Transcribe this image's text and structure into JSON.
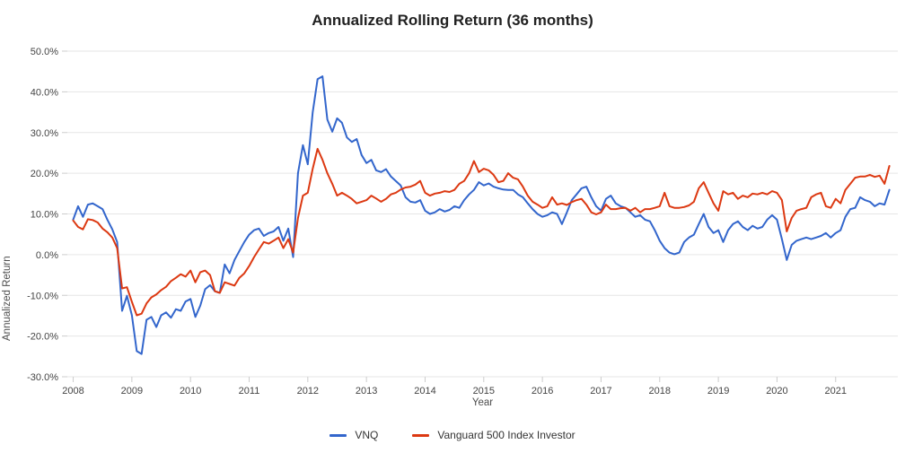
{
  "chart_data": {
    "type": "line",
    "title": "Annualized Rolling Return (36 months)",
    "xlabel": "Year",
    "ylabel": "Annualized Return",
    "x_unit": "monthly",
    "x_start_year": 2008,
    "x_end_year": 2021,
    "x_ticks": [
      2008,
      2009,
      2010,
      2011,
      2012,
      2013,
      2014,
      2015,
      2016,
      2017,
      2018,
      2019,
      2020,
      2021
    ],
    "ylim": [
      -30,
      50
    ],
    "y_tick_values": [
      50,
      40,
      30,
      20,
      10,
      0,
      -10,
      -20,
      -30
    ],
    "y_tick_labels": [
      "50.0%",
      "40.0%",
      "30.0%",
      "20.0%",
      "10.0%",
      "0.0%",
      "-10.0%",
      "-20.0%",
      "-30.0%"
    ],
    "grid": "horizontal",
    "legend_position": "bottom-center",
    "colors": {
      "gridline": "#e6e6e6",
      "tick": "#cccccc",
      "tick_label": "#444444"
    },
    "series": [
      {
        "name": "VNQ",
        "color": "#3366cc",
        "values": [
          8.6,
          11.9,
          9.3,
          12.3,
          12.6,
          11.9,
          11.2,
          8.6,
          6.2,
          3.1,
          -13.8,
          -10.1,
          -14.9,
          -23.7,
          -24.4,
          -16.0,
          -15.3,
          -17.8,
          -14.9,
          -14.2,
          -15.5,
          -13.4,
          -13.8,
          -11.5,
          -10.9,
          -15.3,
          -12.5,
          -8.5,
          -7.5,
          -9.0,
          -9.4,
          -2.4,
          -4.6,
          -1.3,
          0.9,
          3.1,
          4.9,
          6.0,
          6.4,
          4.6,
          5.3,
          5.7,
          6.8,
          3.4,
          6.4,
          -0.6,
          20.0,
          26.9,
          22.2,
          35.0,
          43.1,
          43.8,
          33.2,
          30.2,
          33.5,
          32.4,
          28.8,
          27.7,
          28.4,
          24.5,
          22.5,
          23.3,
          20.7,
          20.3,
          21.0,
          19.2,
          18.1,
          17.0,
          14.1,
          13.0,
          12.8,
          13.4,
          10.8,
          10.0,
          10.4,
          11.2,
          10.6,
          11.0,
          11.9,
          11.5,
          13.4,
          14.8,
          15.9,
          17.8,
          17.0,
          17.5,
          16.7,
          16.3,
          16.0,
          15.9,
          15.9,
          14.8,
          14.1,
          12.6,
          11.2,
          10.0,
          9.3,
          9.7,
          10.4,
          10.0,
          7.5,
          10.4,
          13.4,
          14.8,
          16.3,
          16.7,
          14.1,
          11.9,
          10.8,
          13.7,
          14.5,
          12.6,
          11.9,
          11.5,
          10.4,
          9.3,
          9.7,
          8.6,
          8.2,
          6.0,
          3.4,
          1.6,
          0.5,
          0.1,
          0.5,
          3.1,
          4.2,
          4.9,
          7.5,
          10.0,
          6.8,
          5.3,
          6.0,
          3.1,
          6.0,
          7.5,
          8.2,
          6.8,
          6.0,
          7.1,
          6.4,
          6.8,
          8.6,
          9.7,
          8.6,
          3.8,
          -1.3,
          2.4,
          3.4,
          3.8,
          4.2,
          3.8,
          4.2,
          4.6,
          5.3,
          4.2,
          5.3,
          6.0,
          9.3,
          11.2,
          11.5,
          14.1,
          13.4,
          13.0,
          11.9,
          12.6,
          12.3,
          15.9
        ]
      },
      {
        "name": "Vanguard 500 Index Investor",
        "color": "#dc3912",
        "values": [
          8.4,
          6.8,
          6.2,
          8.7,
          8.5,
          7.9,
          6.4,
          5.5,
          4.2,
          1.6,
          -8.3,
          -8.0,
          -11.6,
          -14.9,
          -14.5,
          -12.0,
          -10.5,
          -9.8,
          -8.7,
          -7.9,
          -6.5,
          -5.7,
          -4.8,
          -5.4,
          -3.9,
          -6.8,
          -4.3,
          -3.9,
          -5.0,
          -9.0,
          -9.4,
          -6.8,
          -7.2,
          -7.6,
          -5.7,
          -4.6,
          -2.8,
          -0.6,
          1.3,
          3.1,
          2.7,
          3.4,
          4.2,
          1.6,
          3.8,
          0.5,
          9.0,
          14.5,
          15.2,
          21.1,
          26.0,
          23.3,
          20.0,
          17.4,
          14.5,
          15.2,
          14.5,
          13.7,
          12.6,
          13.0,
          13.4,
          14.5,
          13.8,
          13.0,
          13.7,
          14.8,
          15.2,
          16.0,
          16.5,
          16.7,
          17.2,
          18.1,
          15.2,
          14.5,
          15.0,
          15.2,
          15.6,
          15.4,
          15.9,
          17.4,
          18.1,
          20.0,
          23.0,
          20.3,
          21.1,
          20.7,
          19.6,
          17.8,
          18.1,
          20.0,
          18.9,
          18.5,
          16.7,
          14.5,
          13.0,
          12.3,
          11.5,
          11.9,
          14.1,
          12.3,
          12.6,
          12.2,
          12.9,
          13.4,
          13.7,
          12.3,
          10.4,
          9.9,
          10.4,
          12.3,
          11.2,
          11.2,
          11.4,
          11.5,
          10.8,
          11.5,
          10.4,
          11.2,
          11.2,
          11.5,
          11.9,
          15.2,
          11.9,
          11.5,
          11.5,
          11.7,
          12.1,
          13.0,
          16.3,
          17.8,
          15.2,
          12.6,
          10.8,
          15.6,
          14.8,
          15.2,
          13.7,
          14.5,
          14.1,
          15.0,
          14.8,
          15.2,
          14.8,
          15.6,
          15.2,
          13.4,
          5.7,
          9.0,
          10.8,
          11.2,
          11.5,
          14.1,
          14.8,
          15.2,
          11.9,
          11.5,
          13.7,
          12.6,
          15.9,
          17.4,
          18.9,
          19.2,
          19.2,
          19.6,
          19.1,
          19.4,
          17.4,
          21.8
        ]
      }
    ]
  }
}
